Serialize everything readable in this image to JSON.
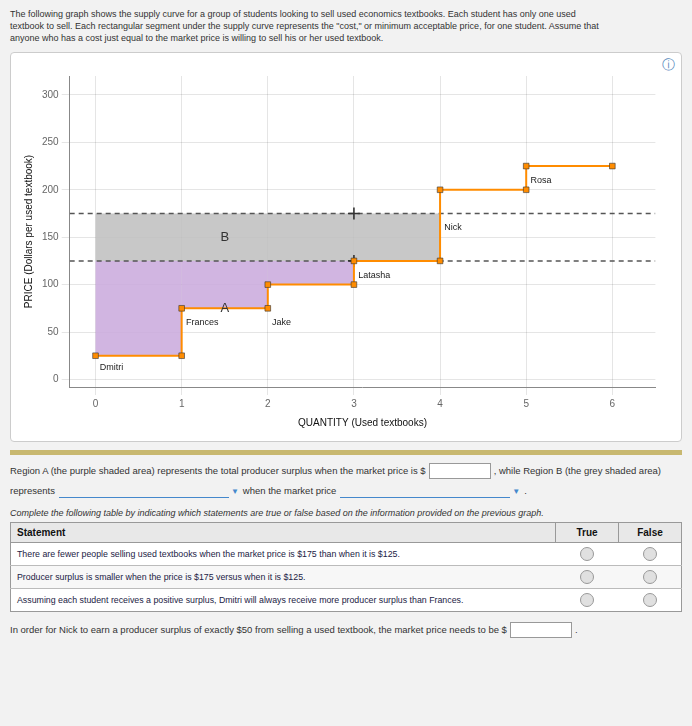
{
  "intro": [
    "The following graph shows the supply curve for a group of students looking to sell used economics textbooks. Each student has only one used",
    "textbook to sell. Each rectangular segment under the supply curve represents the \"cost,\" or minimum acceptable price, for one student. Assume that",
    "anyone who has a cost just equal to the market price is willing to sell his or her used textbook."
  ],
  "chart_data": {
    "type": "line",
    "icon": "ⓘ",
    "xlabel": "QUANTITY (Used textbooks)",
    "ylabel": "PRICE (Dollars per used textbook)",
    "xlim": [
      -0.3,
      6.5
    ],
    "ylim": [
      -8,
      320
    ],
    "xticks": [
      0,
      1,
      2,
      3,
      4,
      5,
      6
    ],
    "yticks": [
      0,
      50,
      100,
      150,
      200,
      250,
      300
    ],
    "grid": true,
    "x": [
      0,
      1,
      1,
      2,
      2,
      3,
      3,
      4,
      4,
      5,
      5,
      6
    ],
    "values": [
      25,
      25,
      75,
      75,
      100,
      100,
      125,
      125,
      200,
      200,
      225,
      225
    ],
    "color": "#FF8C00",
    "marker": "square",
    "line_style": "solid",
    "regions": [
      {
        "label": "A",
        "label_x": 1.5,
        "label_y": 75,
        "color": "#C9A8DC",
        "pieces": [
          {
            "x": [
              0,
              1
            ],
            "lower": [
              25,
              25
            ],
            "upper": [
              125,
              125
            ]
          },
          {
            "x": [
              1,
              2
            ],
            "lower": [
              75,
              75
            ],
            "upper": [
              125,
              125
            ]
          },
          {
            "x": [
              2,
              3
            ],
            "lower": [
              100,
              100
            ],
            "upper": [
              125,
              125
            ]
          }
        ]
      },
      {
        "label": "B",
        "label_x": 1.5,
        "label_y": 150,
        "color": "#BEBEBE",
        "pieces": [
          {
            "x": [
              0,
              4
            ],
            "lower": [
              125,
              125
            ],
            "upper": [
              175,
              175
            ]
          }
        ]
      }
    ],
    "hlines": {
      "values": [
        125,
        175
      ],
      "color": "#555555",
      "line_style": "dashed"
    },
    "crosshairs": {
      "x": [
        3,
        3
      ],
      "values": [
        175,
        125
      ],
      "marker": "cross"
    },
    "annotations": [
      {
        "text": "Dmitri",
        "x": 0.05,
        "y": 13
      },
      {
        "text": "Frances",
        "x": 1.05,
        "y": 60
      },
      {
        "text": "Jake",
        "x": 2.05,
        "y": 60
      },
      {
        "text": "Latasha",
        "x": 3.05,
        "y": 110
      },
      {
        "text": "Nick",
        "x": 4.05,
        "y": 160
      },
      {
        "text": "Rosa",
        "x": 5.05,
        "y": 210
      }
    ]
  },
  "form_lines": [
    [
      {
        "text": "Region A (the purple shaded area) represents the total producer surplus when the market price is "
      },
      {
        "text": "$"
      },
      {
        "field": "input"
      },
      {
        "text": ", while Region B (the grey shaded area)"
      }
    ],
    [
      {
        "text": "represents"
      },
      {
        "field": "dropdown",
        "text": "▼"
      },
      {
        "text": "when the market price"
      },
      {
        "field": "dropdown",
        "text": "▼"
      },
      {
        "text": "."
      }
    ]
  ],
  "table": {
    "caption": "Complete the following table by indicating which statements are true or false based on the information provided on the previous graph.",
    "columns": [
      "Statement",
      "True",
      "False"
    ],
    "rows": [
      "There are fewer people selling used textbooks when the market price is $175 than when it is $125.",
      "Producer surplus is smaller when the price is $175 versus when it is $125.",
      "Assuming each student receives a positive surplus, Dmitri will always receive more producer surplus than Frances."
    ]
  },
  "note": [
    {
      "text": "In order for Nick to earn a producer surplus of exactly $50 from selling a used textbook, the market price needs to be $"
    },
    {
      "field": "input"
    },
    {
      "text": "."
    }
  ]
}
